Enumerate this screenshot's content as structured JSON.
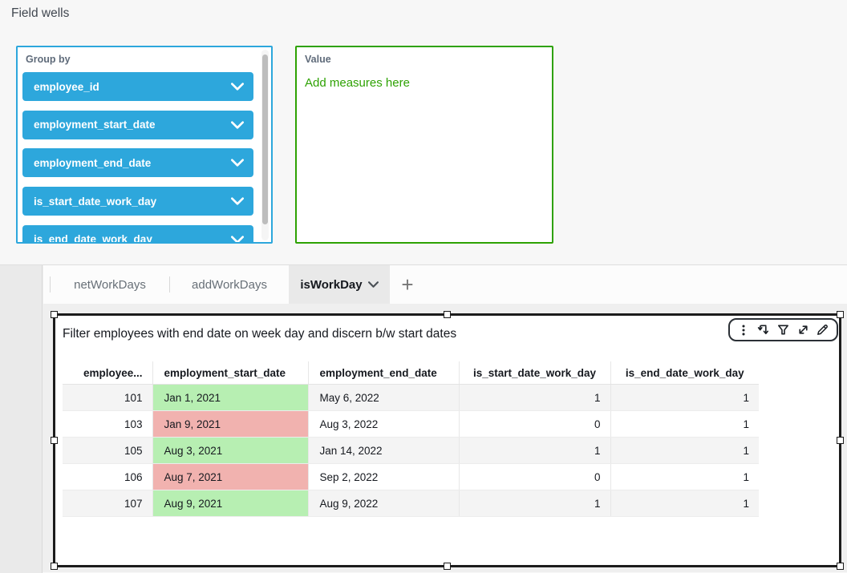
{
  "header": {
    "title": "Field wells"
  },
  "field_wells": {
    "group_by": {
      "label": "Group by",
      "fields": [
        "employee_id",
        "employment_start_date",
        "employment_end_date",
        "is_start_date_work_day",
        "is_end_date_work_day"
      ]
    },
    "value": {
      "label": "Value",
      "hint": "Add measures here"
    }
  },
  "sheet_tabs": {
    "items": [
      {
        "label": "netWorkDays",
        "active": false
      },
      {
        "label": "addWorkDays",
        "active": false
      },
      {
        "label": "isWorkDay",
        "active": true
      }
    ],
    "add_tab_label": "+"
  },
  "visual": {
    "title": "Filter employees with end date on week day and discern b/w start dates",
    "toolbar": {
      "icons": [
        "menu-icon",
        "swap-arrows-icon",
        "filter-icon",
        "expand-icon",
        "edit-icon"
      ]
    },
    "table": {
      "columns": [
        "employee...",
        "employment_start_date",
        "employment_end_date",
        "is_start_date_work_day",
        "is_end_date_work_day"
      ],
      "rows": [
        [
          "101",
          "Jan 1, 2021",
          "May 6, 2022",
          "1",
          "1"
        ],
        [
          "103",
          "Jan 9, 2021",
          "Aug 3, 2022",
          "0",
          "1"
        ],
        [
          "105",
          "Aug 3, 2021",
          "Jan 14, 2022",
          "1",
          "1"
        ],
        [
          "106",
          "Aug 7, 2021",
          "Sep 2, 2022",
          "0",
          "1"
        ],
        [
          "107",
          "Aug 9, 2021",
          "Aug 9, 2022",
          "1",
          "1"
        ]
      ],
      "start_date_cell_colors": [
        "green",
        "red",
        "green",
        "red",
        "green"
      ]
    }
  },
  "colors": {
    "pill_blue": "#2DA7DC",
    "group_by_border": "#2DA7DC",
    "value_border": "#2EA203",
    "value_hint_green": "#2EA203",
    "cell_green": "#B7EFB2",
    "cell_red": "#F1B2AF",
    "row_stripe": "#F4F4F4"
  }
}
